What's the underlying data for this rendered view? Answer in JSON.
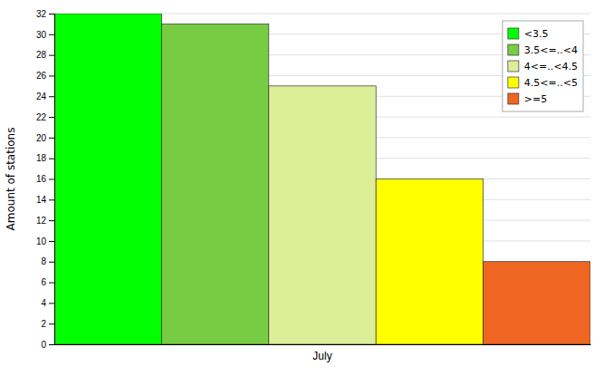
{
  "chart_data": {
    "type": "bar",
    "categories": [
      "July"
    ],
    "series": [
      {
        "name": "<3.5",
        "color": "#00ff00",
        "values": [
          32
        ]
      },
      {
        "name": "3.5<=..<4",
        "color": "#77cc44",
        "values": [
          31
        ]
      },
      {
        "name": "4<=..<4.5",
        "color": "#ddee99",
        "values": [
          25
        ]
      },
      {
        "name": "4.5<=..<5",
        "color": "#ffff00",
        "values": [
          16
        ]
      },
      {
        "name": ">=5",
        "color": "#ee6622",
        "values": [
          8
        ]
      }
    ],
    "ylabel": "Amount of stations",
    "ylim": [
      0,
      32
    ],
    "yticks": [
      0,
      2,
      4,
      6,
      8,
      10,
      12,
      14,
      16,
      18,
      20,
      22,
      24,
      26,
      28,
      30,
      32
    ],
    "grid": true,
    "legend": "upper right"
  }
}
